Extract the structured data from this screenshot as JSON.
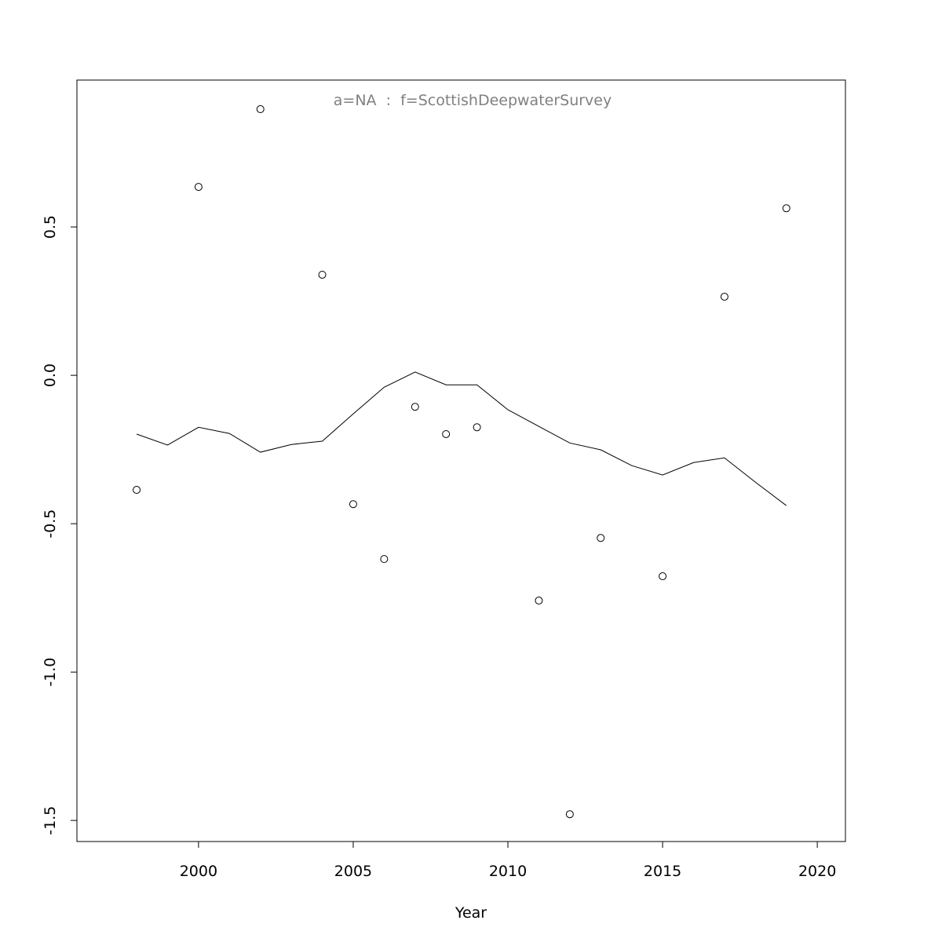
{
  "chart_data": {
    "type": "scatter",
    "title": "a=NA  :  f=ScottishDeepwaterSurvey",
    "x_label": "Year",
    "series": [
      {
        "mark": "points",
        "color": "#000000",
        "x": [
          1998,
          2000,
          2002,
          2004,
          2005,
          2006,
          2007,
          2008,
          2009,
          2011,
          2012,
          2013,
          2015,
          2017,
          2019
        ],
        "values": [
          -0.386,
          0.635,
          0.897,
          0.339,
          -0.434,
          -0.619,
          -0.106,
          -0.198,
          -0.175,
          -0.759,
          -1.479,
          -0.548,
          -0.677,
          0.265,
          0.563
        ]
      },
      {
        "mark": "line",
        "color": "#000000",
        "x": [
          1998,
          1999,
          2000,
          2001,
          2002,
          2003,
          2004,
          2005,
          2006,
          2007,
          2008,
          2009,
          2010,
          2011,
          2012,
          2013,
          2014,
          2015,
          2016,
          2017,
          2018,
          2019
        ],
        "values": [
          -0.198,
          -0.235,
          -0.175,
          -0.196,
          -0.259,
          -0.233,
          -0.222,
          -0.13,
          -0.04,
          0.011,
          -0.032,
          -0.032,
          -0.116,
          -0.172,
          -0.228,
          -0.251,
          -0.304,
          -0.336,
          -0.294,
          -0.278,
          -0.36,
          -0.439
        ]
      }
    ],
    "xlim": [
      1996.07,
      2020.91
    ],
    "ylim": [
      -1.571,
      0.995
    ],
    "xticks": [
      2000,
      2005,
      2010,
      2015,
      2020
    ],
    "yticks": [
      -1.5,
      {
        "value": -1.0,
        "label": "-1.0"
      },
      -0.5,
      {
        "value": 0.0,
        "label": "0.0"
      },
      0.5
    ],
    "grid": false
  }
}
